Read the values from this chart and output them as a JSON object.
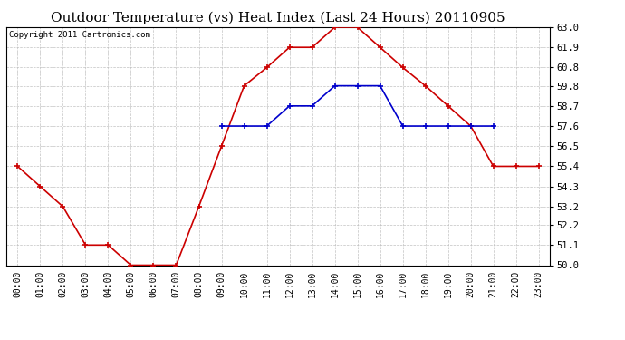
{
  "title": "Outdoor Temperature (vs) Heat Index (Last 24 Hours) 20110905",
  "copyright": "Copyright 2011 Cartronics.com",
  "hours": [
    "00:00",
    "01:00",
    "02:00",
    "03:00",
    "04:00",
    "05:00",
    "06:00",
    "07:00",
    "08:00",
    "09:00",
    "10:00",
    "11:00",
    "12:00",
    "13:00",
    "14:00",
    "15:00",
    "16:00",
    "17:00",
    "18:00",
    "19:00",
    "20:00",
    "21:00",
    "22:00",
    "23:00"
  ],
  "temp": [
    55.4,
    54.3,
    53.2,
    51.1,
    51.1,
    50.0,
    50.0,
    50.0,
    53.2,
    56.5,
    59.8,
    60.8,
    61.9,
    61.9,
    63.0,
    63.0,
    61.9,
    60.8,
    59.8,
    58.7,
    57.6,
    55.4,
    55.4,
    55.4
  ],
  "heat_index": [
    null,
    null,
    null,
    null,
    null,
    null,
    null,
    null,
    null,
    57.6,
    57.6,
    57.6,
    58.7,
    58.7,
    59.8,
    59.8,
    59.8,
    57.6,
    57.6,
    57.6,
    57.6,
    57.6,
    null,
    null
  ],
  "temp_color": "#cc0000",
  "heat_color": "#0000cc",
  "ylim": [
    50.0,
    63.0
  ],
  "yticks": [
    50.0,
    51.1,
    52.2,
    53.2,
    54.3,
    55.4,
    56.5,
    57.6,
    58.7,
    59.8,
    60.8,
    61.9,
    63.0
  ],
  "bg_color": "#ffffff",
  "grid_color": "#bbbbbb",
  "title_fontsize": 11,
  "copyright_fontsize": 6.5,
  "tick_fontsize": 7,
  "ytick_fontsize": 7.5
}
